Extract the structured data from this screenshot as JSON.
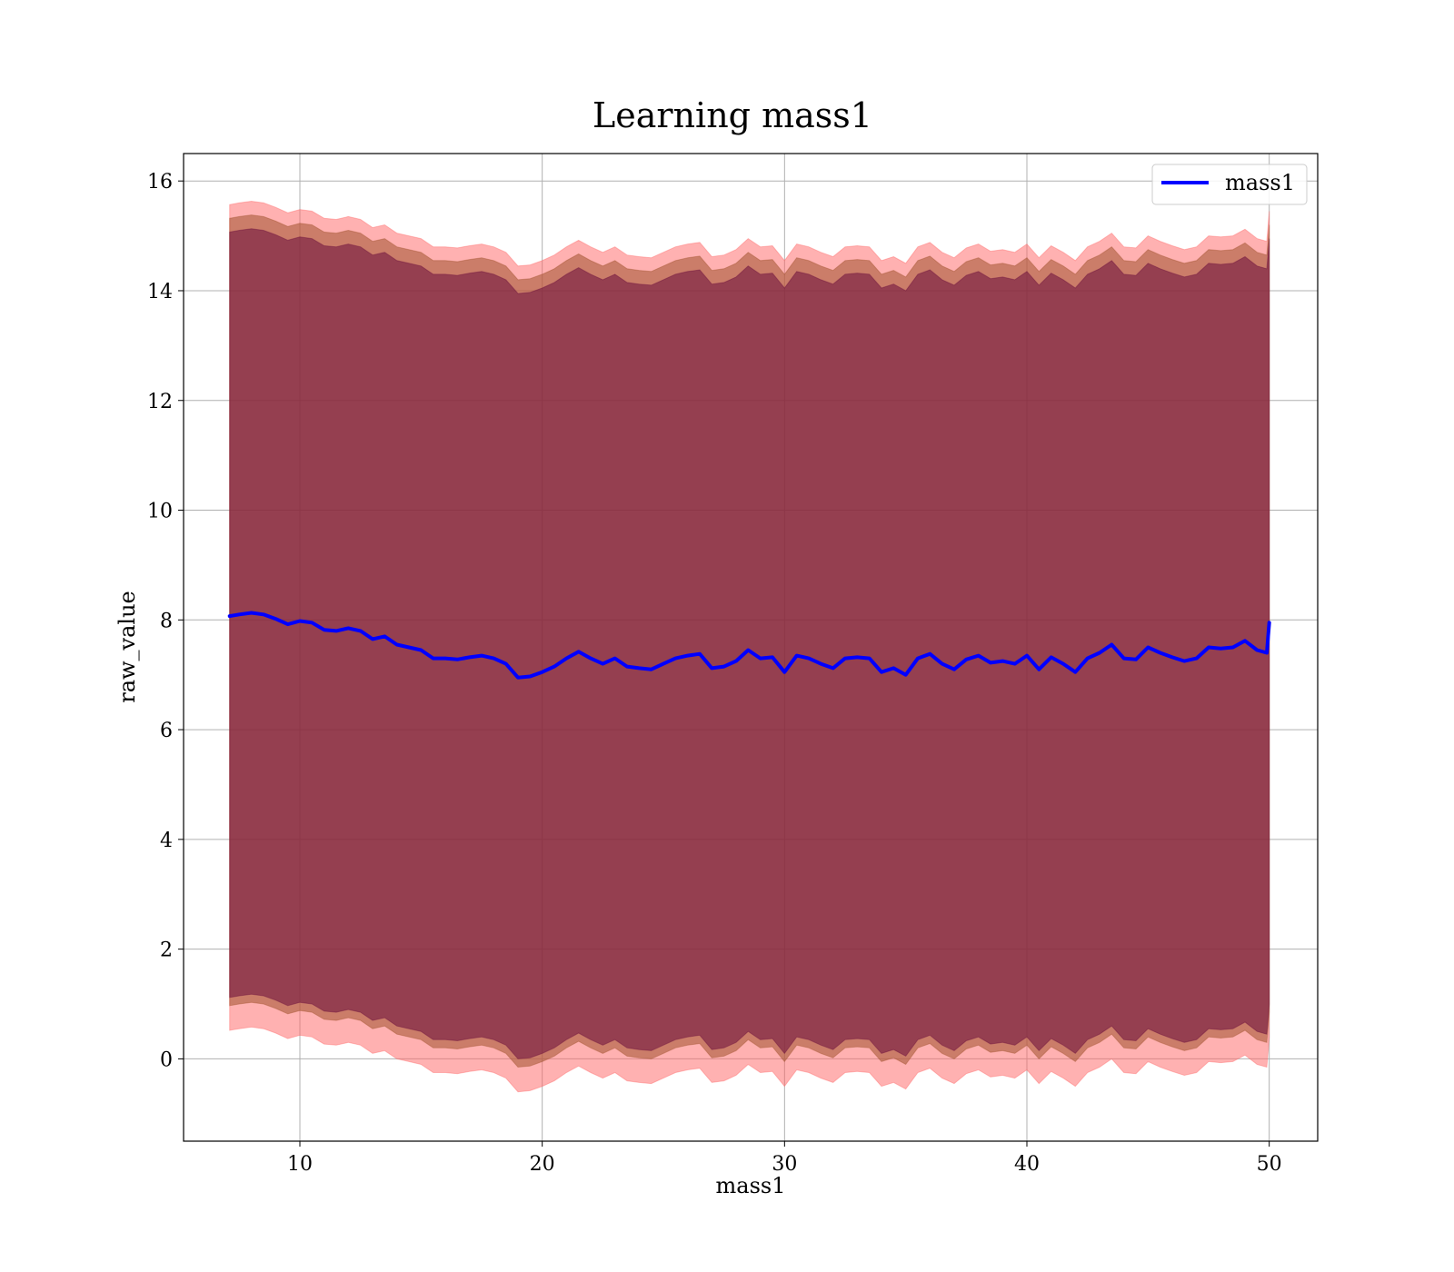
{
  "chart_data": {
    "type": "area",
    "title": "Learning mass1",
    "xlabel": "mass1",
    "ylabel": "raw_value",
    "xlim": [
      5.2,
      52.0
    ],
    "ylim": [
      -1.5,
      16.5
    ],
    "xticks": [
      10,
      20,
      30,
      40,
      50
    ],
    "yticks": [
      0,
      2,
      4,
      6,
      8,
      10,
      12,
      14,
      16
    ],
    "grid": true,
    "legend": {
      "position": "upper right",
      "entries": [
        "mass1"
      ]
    },
    "colors": {
      "line": "#0000ff",
      "band_outer": "#ff6464",
      "band_middle": "#a0522d",
      "band_inner": "#6a0d3d",
      "grid": "#b0b0b0"
    },
    "x": [
      7.1,
      7.5,
      8.0,
      8.5,
      9.0,
      9.5,
      10.0,
      10.5,
      11.0,
      11.5,
      12.0,
      12.5,
      13.0,
      13.5,
      14.0,
      14.5,
      15.0,
      15.5,
      16.0,
      16.5,
      17.0,
      17.5,
      18.0,
      18.5,
      19.0,
      19.5,
      20.0,
      20.5,
      21.0,
      21.5,
      22.0,
      22.5,
      23.0,
      23.5,
      24.0,
      24.5,
      25.0,
      25.5,
      26.0,
      26.5,
      27.0,
      27.5,
      28.0,
      28.5,
      29.0,
      29.5,
      30.0,
      30.5,
      31.0,
      31.5,
      32.0,
      32.5,
      33.0,
      33.5,
      34.0,
      34.5,
      35.0,
      35.5,
      36.0,
      36.5,
      37.0,
      37.5,
      38.0,
      38.5,
      39.0,
      39.5,
      40.0,
      40.5,
      41.0,
      41.5,
      42.0,
      42.5,
      43.0,
      43.5,
      44.0,
      44.5,
      45.0,
      45.5,
      46.0,
      46.5,
      47.0,
      47.5,
      48.0,
      48.5,
      49.0,
      49.5,
      49.9,
      50.0
    ],
    "series": [
      {
        "name": "mass1",
        "values": [
          8.07,
          8.1,
          8.13,
          8.1,
          8.02,
          7.92,
          7.98,
          7.95,
          7.82,
          7.8,
          7.85,
          7.8,
          7.65,
          7.7,
          7.55,
          7.5,
          7.45,
          7.3,
          7.3,
          7.28,
          7.32,
          7.35,
          7.3,
          7.2,
          6.95,
          6.97,
          7.05,
          7.15,
          7.3,
          7.42,
          7.3,
          7.2,
          7.3,
          7.15,
          7.12,
          7.1,
          7.2,
          7.3,
          7.35,
          7.38,
          7.12,
          7.15,
          7.25,
          7.45,
          7.3,
          7.32,
          7.05,
          7.35,
          7.3,
          7.2,
          7.12,
          7.3,
          7.32,
          7.3,
          7.05,
          7.12,
          7.0,
          7.3,
          7.38,
          7.2,
          7.1,
          7.28,
          7.35,
          7.22,
          7.25,
          7.2,
          7.35,
          7.1,
          7.32,
          7.2,
          7.05,
          7.3,
          7.4,
          7.55,
          7.3,
          7.28,
          7.5,
          7.4,
          7.32,
          7.25,
          7.3,
          7.5,
          7.48,
          7.5,
          7.62,
          7.45,
          7.4,
          7.95
        ]
      }
    ],
    "bands": [
      {
        "role": "outer",
        "lower_offset": -7.55,
        "upper_offset": 7.5
      },
      {
        "role": "middle",
        "lower_offset": -7.1,
        "upper_offset": 7.25
      },
      {
        "role": "inner",
        "lower_offset": -6.95,
        "upper_offset": 7.0
      }
    ]
  }
}
